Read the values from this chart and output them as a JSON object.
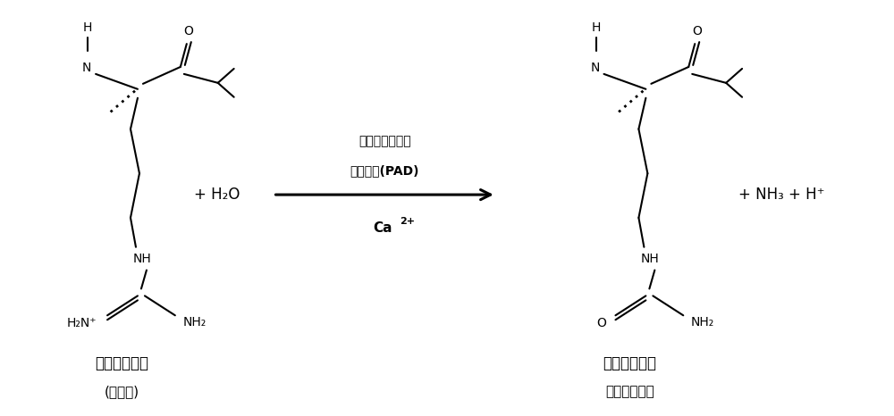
{
  "bg_color": "#ffffff",
  "fig_width": 10.0,
  "fig_height": 4.66,
  "dpi": 100,
  "arrow_label_line1": "肽酰基精氨酸脆",
  "arrow_label_line2": "亚胺基酶(PAD)",
  "reactant_label1": "肽酰基精氨酸",
  "reactant_label2": "(正电荷)",
  "product_label1": "肽酰基瓜氨酸",
  "product_label2": "（中性电荷）",
  "plus_h2o": "+ H₂O",
  "plus_nh3_h": "+ NH₃ + H⁺",
  "text_color": "#000000",
  "line_color": "#000000"
}
